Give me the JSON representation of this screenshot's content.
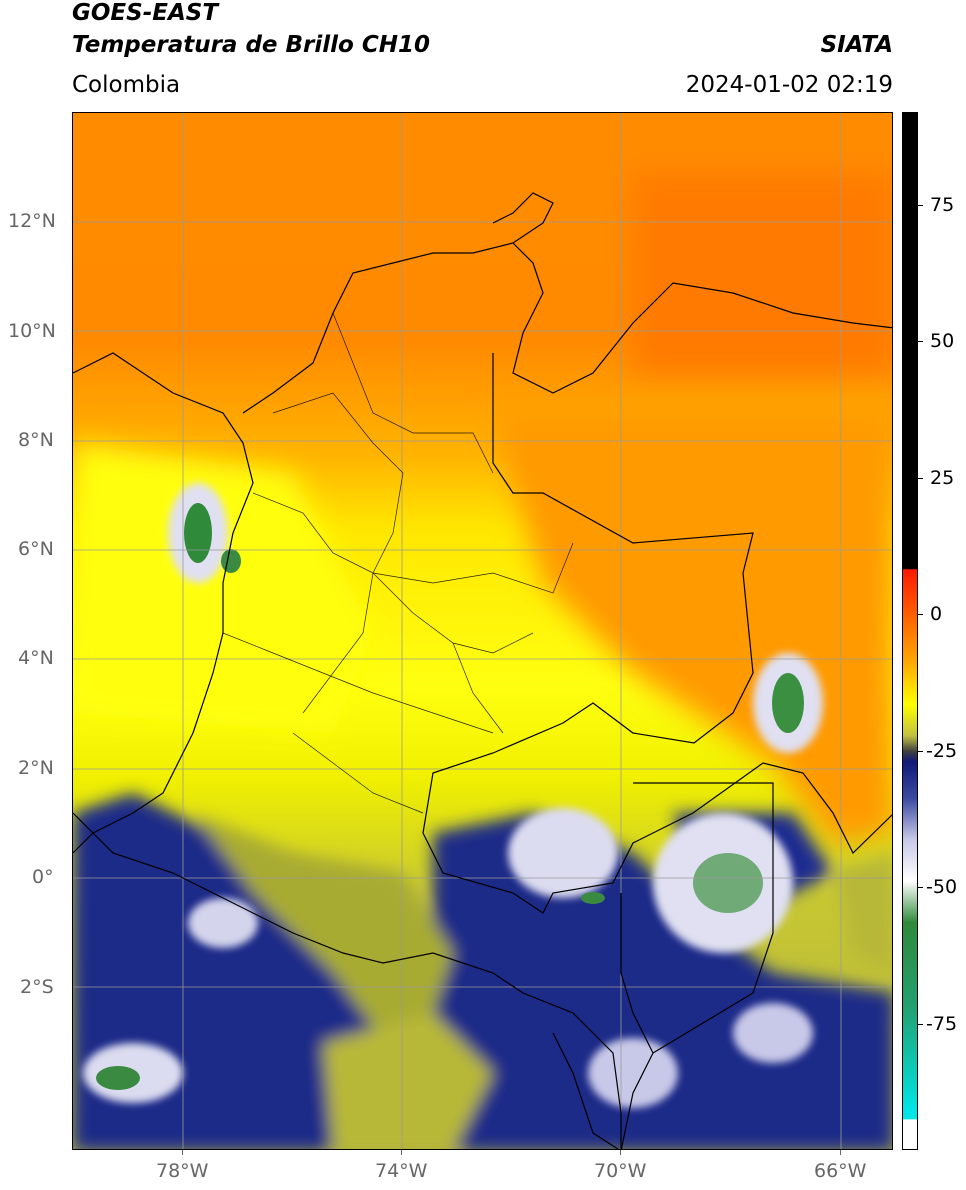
{
  "header": {
    "satellite": "GOES-EAST",
    "product": "Temperatura de Brillo CH10",
    "region": "Colombia",
    "agency": "SIATA",
    "datetime": "2024-01-02 02:19"
  },
  "map": {
    "lat_labels": [
      "12°N",
      "10°N",
      "8°N",
      "6°N",
      "4°N",
      "2°N",
      "0°",
      "2°S"
    ],
    "lon_labels": [
      "78°W",
      "74°W",
      "70°W",
      "66°W"
    ],
    "lat_values": [
      12,
      10,
      8,
      6,
      4,
      2,
      0,
      -2
    ],
    "lon_values": [
      -78,
      -74,
      -70,
      -66
    ],
    "extent": {
      "lon_min": -80,
      "lon_max": -65.05,
      "lat_min": -5,
      "lat_max": 14
    }
  },
  "colorbar": {
    "tick_labels": [
      "75",
      "50",
      "25",
      "0",
      "-25",
      "-50",
      "-75"
    ],
    "tick_values": [
      75,
      50,
      25,
      0,
      -25,
      -50,
      -75
    ],
    "range": [
      -100,
      90
    ],
    "colors": {
      "black": "#000000",
      "red": "#ff1a00",
      "orange": "#ff7a00",
      "yellow": "#ffff00",
      "olive": "#b0b52a",
      "navy": "#101a7a",
      "lavender": "#c8c8e8",
      "white": "#ffffff",
      "green": "#2f8a3a",
      "teal": "#22c1a8",
      "cyan": "#00e5e5"
    }
  }
}
